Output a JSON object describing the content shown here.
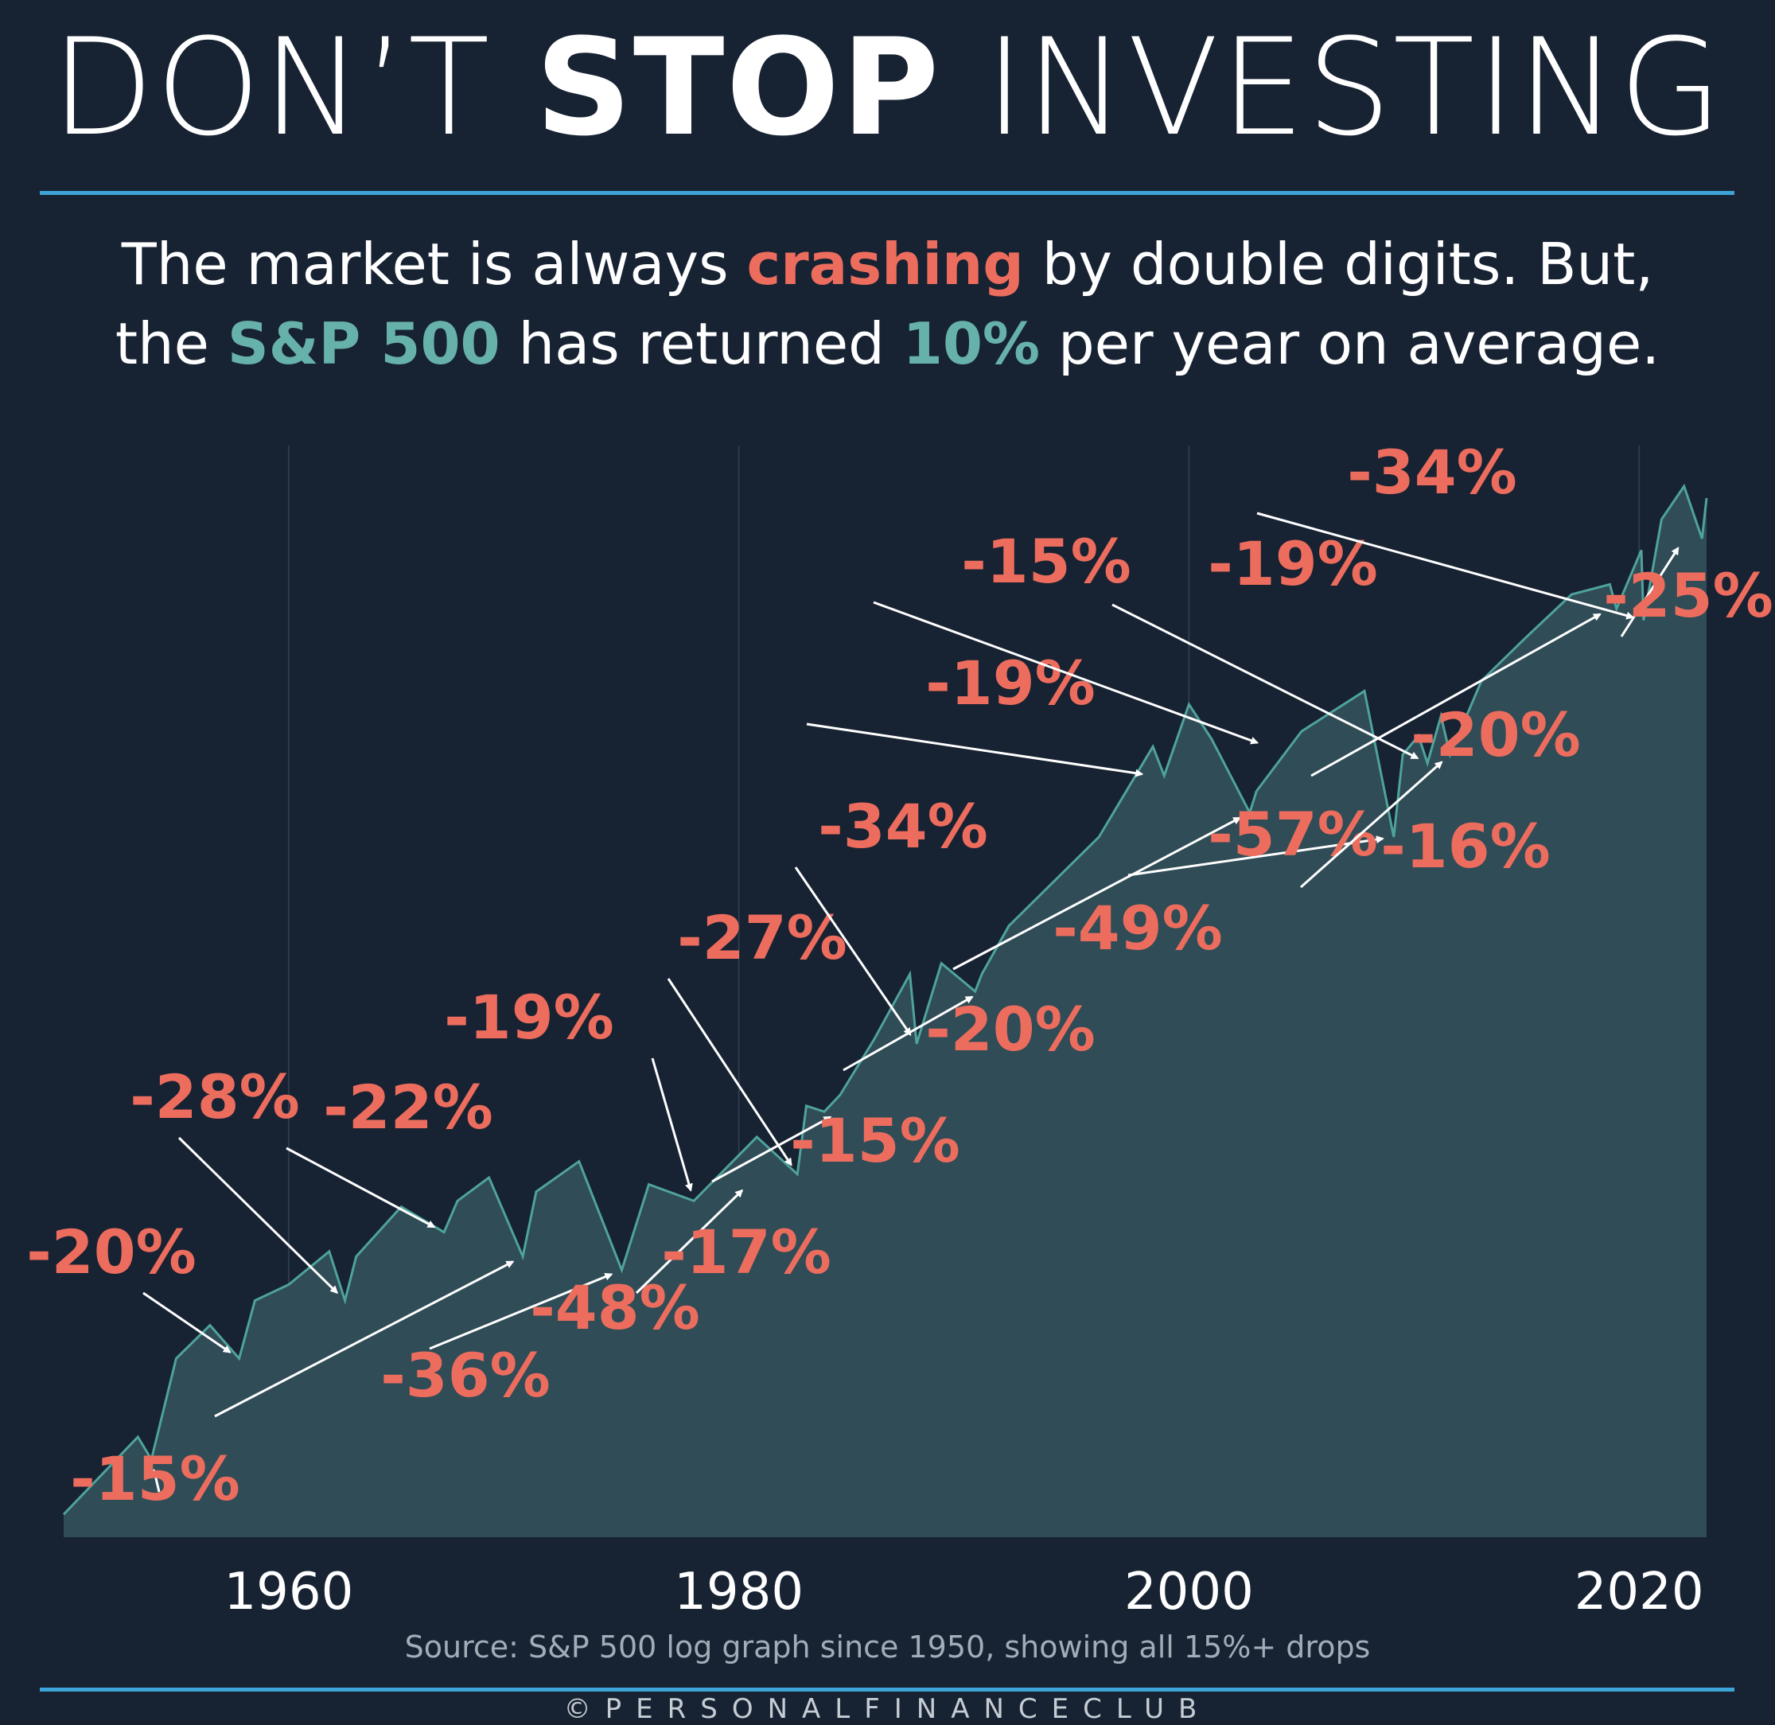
{
  "title": {
    "prefix": "DON’T",
    "emphasis": "STOP",
    "suffix": "INVESTING"
  },
  "subtitle": {
    "line1_a": "The market is always ",
    "line1_highlight": "crashing",
    "line1_b": " by double digits. But,",
    "line2_a": "the ",
    "line2_highlight1": "S&P 500",
    "line2_b": " has returned ",
    "line2_highlight2": "10%",
    "line2_c": " per year on average."
  },
  "source": "Source: S&P 500 log graph since 1950, showing all 15%+ drops",
  "brand": "©PERSONALFINANCECLUB",
  "colors": {
    "background": "#172233",
    "area": "#2f4c57",
    "line": "#4fa39b",
    "accent_red": "#ec6d5d",
    "accent_teal": "#67b1ab",
    "rule": "#3ea3d6"
  },
  "chart_data": {
    "type": "area",
    "y_scale": "log",
    "xlim": [
      1950,
      2023
    ],
    "ylim": [
      15,
      6000
    ],
    "x_ticks": [
      "1960",
      "1980",
      "2000",
      "2020"
    ],
    "vertical_grid": true,
    "series": [
      {
        "values_x": [
          1950,
          1953.3,
          1953.9,
          1955,
          1956.5,
          1957.8,
          1958.5,
          1960,
          1961.8,
          1962.5,
          1963,
          1965,
          1966.9,
          1967.5,
          1968.9,
          1970.4,
          1971,
          1972.9,
          1974.8,
          1976,
          1978,
          1980.8,
          1982.6,
          1983,
          1983.8,
          1984.5,
          1986,
          1987.6,
          1987.9,
          1989,
          1990.5,
          1990.8,
          1992,
          1996,
          1998.4,
          1998.9,
          2000,
          2001,
          2002.7,
          2003,
          2005,
          2007.8,
          2009.1,
          2009.5,
          2010.2,
          2010.6,
          2011.2,
          2011.6,
          2013,
          2015,
          2017,
          2018.7,
          2019,
          2020.1,
          2020.2,
          2021,
          2022,
          2022.8,
          2023
        ],
        "values_y": [
          17,
          26,
          23,
          40,
          48,
          40,
          55,
          60,
          72,
          55,
          70,
          92,
          80,
          95,
          108,
          70,
          100,
          118,
          65,
          104,
          95,
          135,
          110,
          160,
          155,
          170,
          230,
          330,
          225,
          350,
          300,
          330,
          430,
          700,
          1150,
          980,
          1450,
          1200,
          800,
          900,
          1250,
          1560,
          700,
          1100,
          1220,
          1050,
          1360,
          1100,
          1650,
          2100,
          2650,
          2800,
          2450,
          3380,
          2300,
          4000,
          4800,
          3600,
          4500
        ]
      }
    ],
    "annotations": [
      {
        "label": "-15%",
        "x": 1953.9,
        "y": 23
      },
      {
        "label": "-20%",
        "x": 1957.8,
        "y": 40
      },
      {
        "label": "-28%",
        "x": 1962.5,
        "y": 55
      },
      {
        "label": "-22%",
        "x": 1966.9,
        "y": 80
      },
      {
        "label": "-36%",
        "x": 1970.4,
        "y": 70
      },
      {
        "label": "-48%",
        "x": 1974.8,
        "y": 65
      },
      {
        "label": "-19%",
        "x": 1978,
        "y": 95
      },
      {
        "label": "-17%",
        "x": 1980.5,
        "y": 105
      },
      {
        "label": "-27%",
        "x": 1982.6,
        "y": 110
      },
      {
        "label": "-15%",
        "x": 1984.5,
        "y": 155
      },
      {
        "label": "-34%",
        "x": 1987.9,
        "y": 225
      },
      {
        "label": "-20%",
        "x": 1990.8,
        "y": 300
      },
      {
        "label": "-19%",
        "x": 1998.4,
        "y": 980
      },
      {
        "label": "-49%",
        "x": 2002.7,
        "y": 800
      },
      {
        "label": "-15%",
        "x": 2003.5,
        "y": 1150
      },
      {
        "label": "-57%",
        "x": 2009.1,
        "y": 700
      },
      {
        "label": "-19%",
        "x": 2010.6,
        "y": 1050
      },
      {
        "label": "-16%",
        "x": 2011.6,
        "y": 1100
      },
      {
        "label": "-20%",
        "x": 2018.7,
        "y": 2450
      },
      {
        "label": "-34%",
        "x": 2020.2,
        "y": 2300
      },
      {
        "label": "-25%",
        "x": 2022,
        "y": 3600
      }
    ]
  }
}
